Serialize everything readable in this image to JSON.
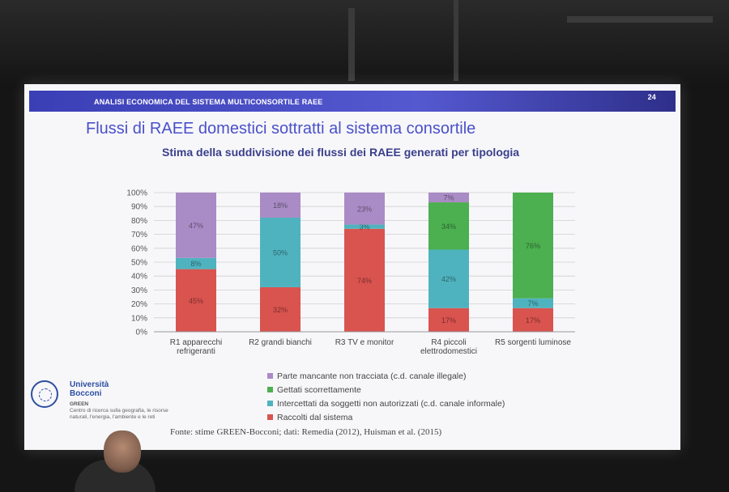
{
  "slide": {
    "header": "ANALISI ECONOMICA DEL SISTEMA MULTICONSORTILE RAEE",
    "page_number": "24",
    "title": "Flussi di RAEE domestici sottratti al sistema consortile",
    "source": "Fonte: stime GREEN-Bocconi; dati: Remedia (2012), Huisman et al. (2015)"
  },
  "logo": {
    "university_line1": "Università",
    "university_line2": "Bocconi",
    "unit": "GREEN",
    "unit_description": "Centro di ricerca sulla geografia, le risorse naturali, l'energia, l'ambiente e le reti"
  },
  "chart_data": {
    "type": "bar",
    "stacked": true,
    "title": "Stima della suddivisione dei flussi dei RAEE generati per tipologia",
    "ylim": [
      0,
      100
    ],
    "yticks": [
      "0%",
      "10%",
      "20%",
      "30%",
      "40%",
      "50%",
      "60%",
      "70%",
      "80%",
      "90%",
      "100%"
    ],
    "grid": true,
    "legend_position": "bottom",
    "categories": [
      [
        "R1 apparecchi",
        "refrigeranti"
      ],
      [
        "R2 grandi bianchi"
      ],
      [
        "R3 TV e monitor"
      ],
      [
        "R4 piccoli",
        "elettrodomestici"
      ],
      [
        "R5 sorgenti luminose"
      ]
    ],
    "series": [
      {
        "name": "Raccolti dal sistema",
        "color": "#d9534f",
        "values": [
          45,
          32,
          74,
          17,
          17
        ],
        "labels": [
          "45%",
          "32%",
          "74%",
          "17%",
          "17%"
        ]
      },
      {
        "name": "Intercettati da soggetti non autorizzati (c.d. canale informale)",
        "color": "#4fb3bf",
        "values": [
          8,
          50,
          3,
          42,
          7
        ],
        "labels": [
          "8%",
          "50%",
          "3%",
          "42%",
          "7%"
        ]
      },
      {
        "name": "Gettati scorrettamente",
        "color": "#4caf50",
        "values": [
          0,
          0,
          0,
          34,
          76
        ],
        "labels": [
          "",
          "",
          "",
          "34%",
          "76%"
        ]
      },
      {
        "name": "Parte mancante non tracciata (c.d. canale illegale)",
        "color": "#a98bc5",
        "values": [
          47,
          18,
          23,
          7,
          0
        ],
        "labels": [
          "47%",
          "18%",
          "23%",
          "7%",
          ""
        ]
      }
    ],
    "legend_order": [
      3,
      2,
      1,
      0
    ]
  }
}
